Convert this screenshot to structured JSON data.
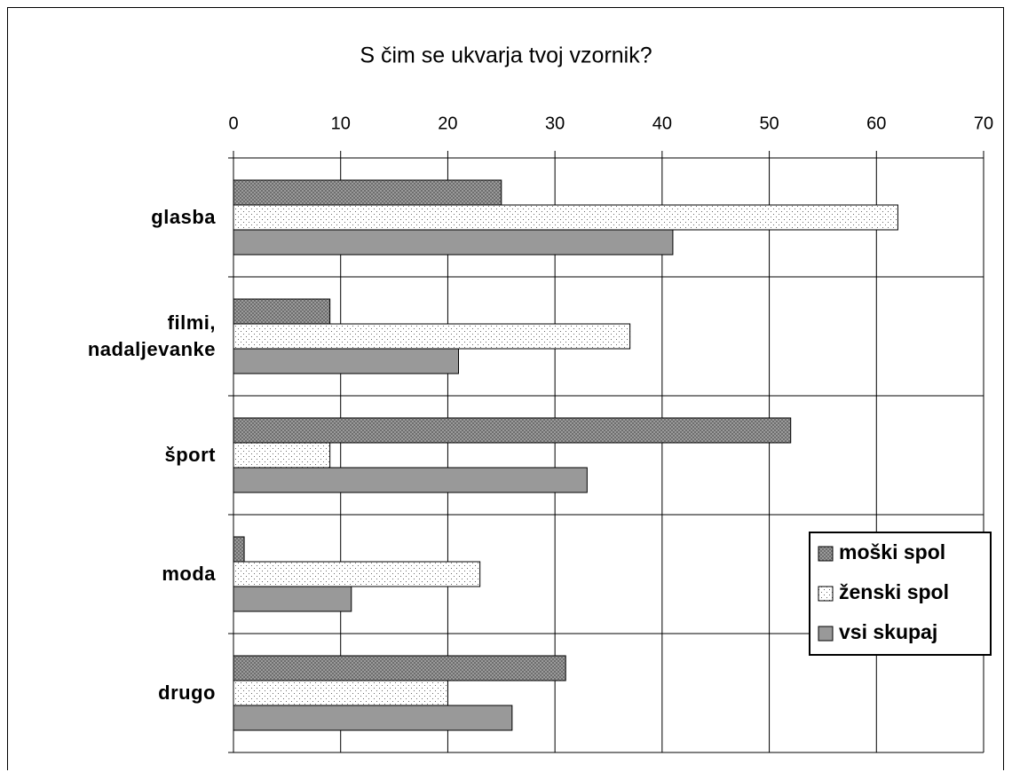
{
  "chart_data": {
    "type": "bar",
    "orientation": "horizontal",
    "title": "S čim se ukvarja tvoj vzornik?",
    "categories": [
      "glasba",
      "filmi,\nnadaljevanke",
      "šport",
      "moda",
      "drugo"
    ],
    "series": [
      {
        "name": "moški spol",
        "color": "#8c8c8c",
        "pattern": "crosshatch",
        "values": [
          25,
          9,
          52,
          1,
          31
        ]
      },
      {
        "name": "ženski spol",
        "color": "#ffffff",
        "pattern": "dots",
        "values": [
          62,
          37,
          9,
          23,
          20
        ]
      },
      {
        "name": "vsi skupaj",
        "color": "#999999",
        "pattern": "solid",
        "values": [
          41,
          21,
          33,
          11,
          26
        ]
      }
    ],
    "xlim": [
      0,
      70
    ],
    "xticks": [
      0,
      10,
      20,
      30,
      40,
      50,
      60,
      70
    ],
    "grid": true,
    "legend": "right"
  }
}
